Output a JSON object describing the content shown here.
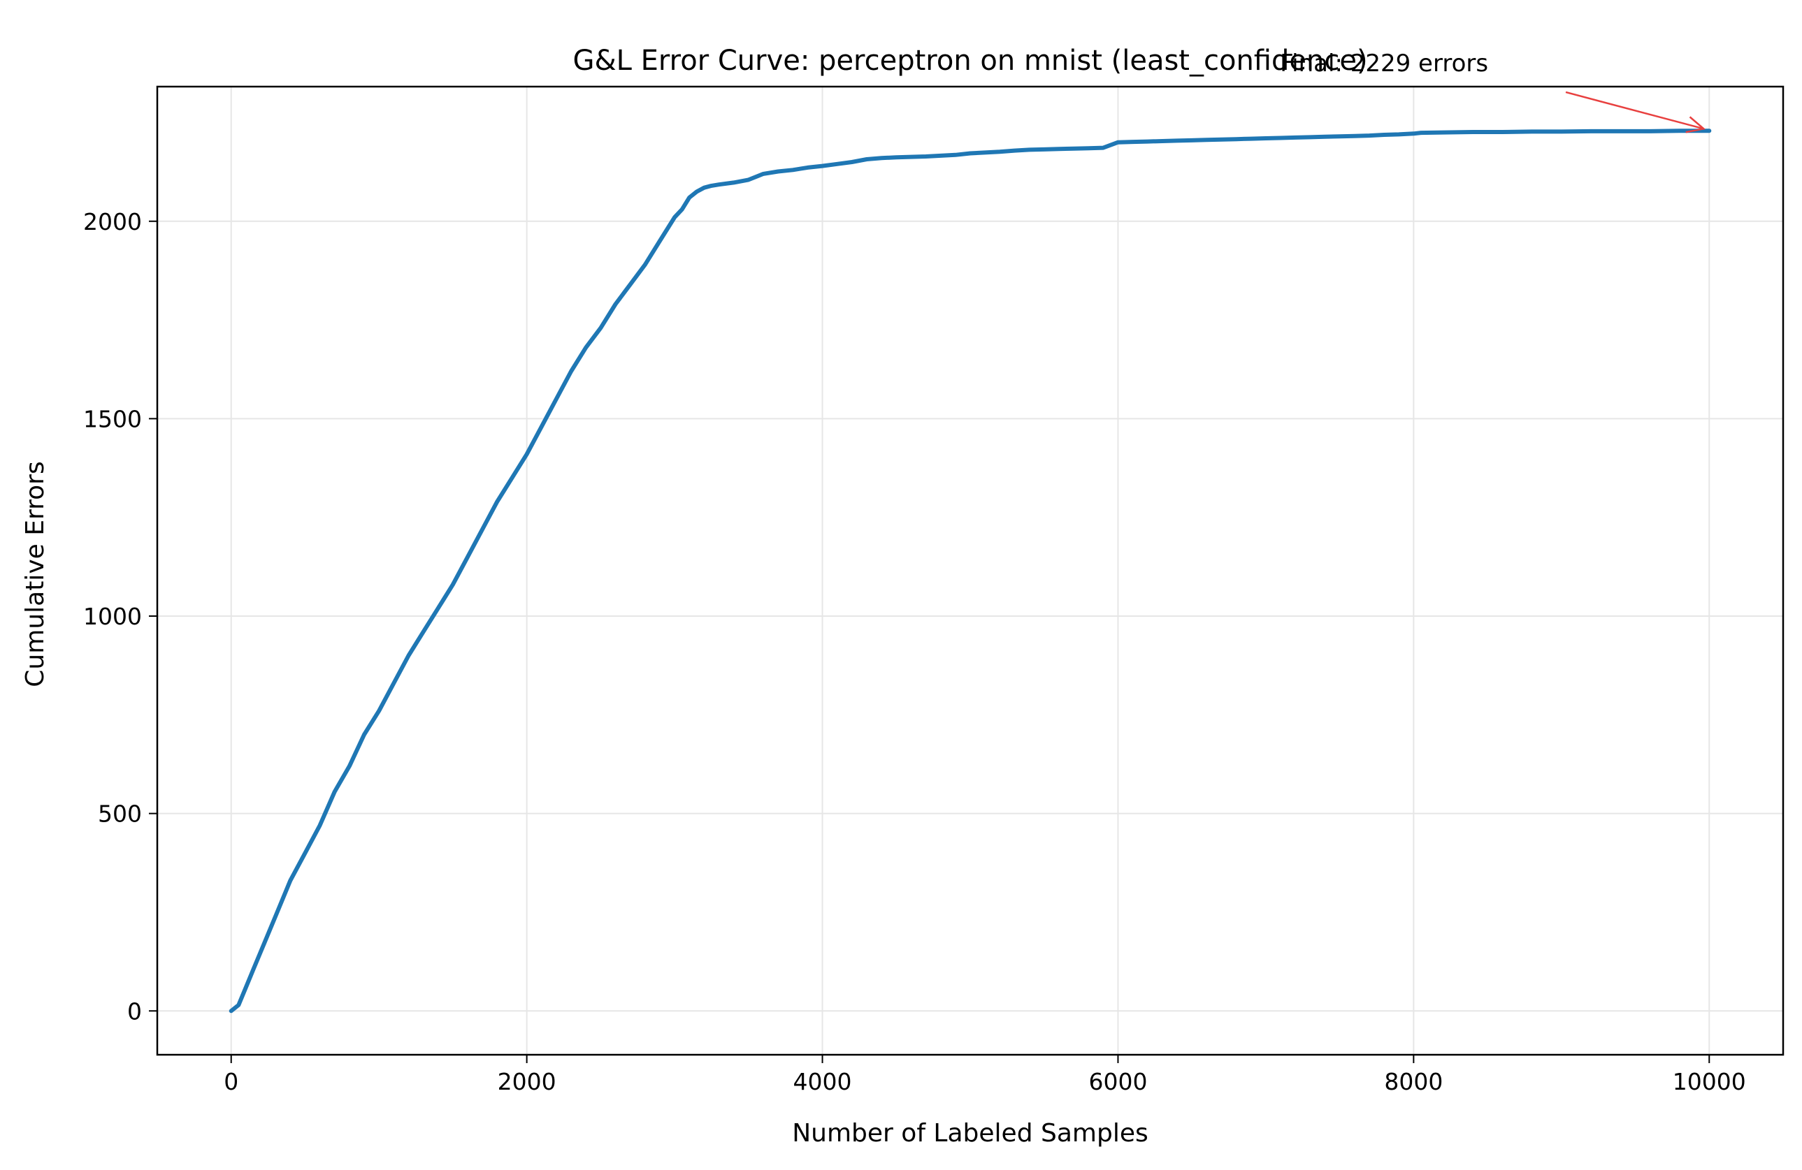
{
  "chart_data": {
    "type": "line",
    "title": "G&L Error Curve: perceptron on mnist (least_confidence)",
    "xlabel": "Number of Labeled Samples",
    "ylabel": "Cumulative Errors",
    "xlim": [
      -500,
      10500
    ],
    "ylim": [
      -111,
      2341
    ],
    "xticks": [
      0,
      2000,
      4000,
      6000,
      8000,
      10000
    ],
    "yticks": [
      0,
      500,
      1000,
      1500,
      2000
    ],
    "grid": true,
    "legend": "none",
    "colors": {
      "line": "#1f77b4",
      "annotation": "#e8403f",
      "grid": "#e6e6e6",
      "axes": "#000000"
    },
    "series": [
      {
        "x": [
          0,
          50,
          100,
          150,
          200,
          300,
          400,
          500,
          600,
          700,
          800,
          900,
          1000,
          1100,
          1200,
          1300,
          1400,
          1500,
          1600,
          1700,
          1800,
          1900,
          2000,
          2100,
          2200,
          2300,
          2400,
          2500,
          2600,
          2700,
          2800,
          2900,
          3000,
          3050,
          3100,
          3150,
          3200,
          3250,
          3300,
          3400,
          3500,
          3600,
          3700,
          3800,
          3900,
          4000,
          4100,
          4200,
          4300,
          4400,
          4500,
          4600,
          4700,
          4800,
          4900,
          5000,
          5100,
          5200,
          5300,
          5400,
          5500,
          5600,
          5700,
          5800,
          5900,
          6000,
          6100,
          6200,
          6300,
          6400,
          6500,
          6600,
          6700,
          6800,
          6900,
          7000,
          7100,
          7200,
          7300,
          7400,
          7500,
          7600,
          7700,
          7800,
          7900,
          8000,
          8050,
          8200,
          8400,
          8600,
          8800,
          9000,
          9200,
          9400,
          9600,
          9800,
          10000
        ],
        "y": [
          0,
          15,
          60,
          105,
          150,
          240,
          330,
          400,
          470,
          555,
          620,
          700,
          760,
          830,
          900,
          960,
          1020,
          1080,
          1150,
          1220,
          1290,
          1350,
          1410,
          1480,
          1550,
          1620,
          1680,
          1730,
          1790,
          1840,
          1890,
          1950,
          2010,
          2030,
          2060,
          2075,
          2085,
          2090,
          2093,
          2098,
          2105,
          2120,
          2126,
          2130,
          2136,
          2140,
          2145,
          2150,
          2157,
          2160,
          2162,
          2163,
          2164,
          2166,
          2168,
          2172,
          2174,
          2176,
          2179,
          2181,
          2182,
          2183,
          2184,
          2185,
          2186,
          2200,
          2201,
          2202,
          2203,
          2204,
          2205,
          2206,
          2207,
          2208,
          2209,
          2210,
          2211,
          2212,
          2213,
          2214,
          2215,
          2216,
          2217,
          2219,
          2220,
          2222,
          2224,
          2225,
          2226,
          2226,
          2227,
          2227,
          2228,
          2228,
          2228,
          2229,
          2229
        ]
      }
    ],
    "annotation": {
      "text": "Final: 2229 errors",
      "target": [
        10000,
        2229
      ],
      "text_anchor_data": [
        7800,
        2380
      ]
    }
  }
}
